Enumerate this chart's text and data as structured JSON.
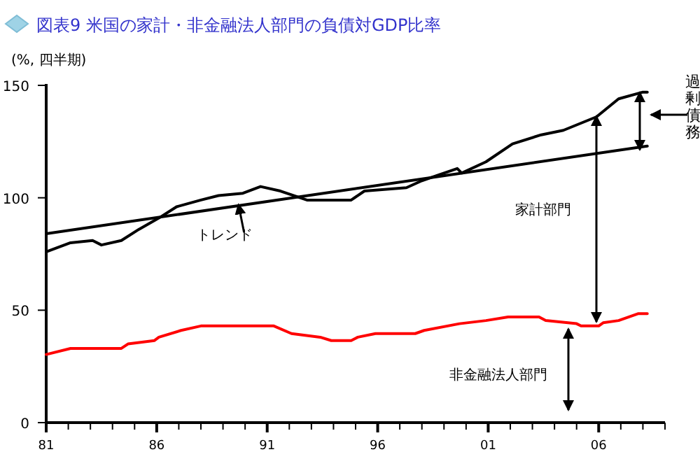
{
  "chart_data": {
    "type": "line",
    "title": "図表9 米国の家計・非金融法人部門の負債対GDP比率",
    "ylabel": "(%, 四半期)",
    "xlim": [
      1981,
      2009
    ],
    "ylim": [
      0,
      150
    ],
    "yticks": [
      0,
      50,
      100,
      150
    ],
    "xticks": [
      {
        "value": 1981,
        "label": "81"
      },
      {
        "value": 1982,
        "label": null
      },
      {
        "value": 1983,
        "label": null
      },
      {
        "value": 1984,
        "label": null
      },
      {
        "value": 1985,
        "label": null
      },
      {
        "value": 1986,
        "label": "86"
      },
      {
        "value": 1987,
        "label": null
      },
      {
        "value": 1988,
        "label": null
      },
      {
        "value": 1989,
        "label": null
      },
      {
        "value": 1990,
        "label": null
      },
      {
        "value": 1991,
        "label": "91"
      },
      {
        "value": 1992,
        "label": null
      },
      {
        "value": 1993,
        "label": null
      },
      {
        "value": 1994,
        "label": null
      },
      {
        "value": 1995,
        "label": null
      },
      {
        "value": 1996,
        "label": "96"
      },
      {
        "value": 1997,
        "label": null
      },
      {
        "value": 1998,
        "label": null
      },
      {
        "value": 1999,
        "label": null
      },
      {
        "value": 2000,
        "label": null
      },
      {
        "value": 2001,
        "label": "01"
      },
      {
        "value": 2002,
        "label": null
      },
      {
        "value": 2003,
        "label": null
      },
      {
        "value": 2004,
        "label": null
      },
      {
        "value": 2005,
        "label": null
      },
      {
        "value": 2006,
        "label": "06"
      },
      {
        "value": 2007,
        "label": null
      },
      {
        "value": 2008,
        "label": null
      },
      {
        "value": 2009,
        "label": null
      }
    ],
    "grid": false,
    "marker": "none",
    "line_style": "solid",
    "series": [
      {
        "color": "#000000",
        "x": [
          1981.0,
          1982.1,
          1983.1,
          1983.5,
          1984.4,
          1985.2,
          1986.1,
          1986.9,
          1988.0,
          1988.8,
          1989.9,
          1990.7,
          1991.6,
          1992.8,
          1994.8,
          1995.4,
          1997.3,
          1998.0,
          1999.6,
          1999.8,
          2000.9,
          2002.1,
          2003.4,
          2004.4,
          2005.9,
          2006.9,
          2008.0,
          2008.2
        ],
        "values": [
          76,
          80,
          81,
          79,
          81,
          86,
          91,
          96,
          99,
          101,
          102,
          105,
          103,
          99,
          99,
          103,
          104.5,
          107.6,
          113,
          111,
          116,
          124,
          128,
          130,
          136,
          144,
          147,
          147
        ]
      },
      {
        "color": "#000000",
        "x": [
          1981.0,
          2008.2
        ],
        "values": [
          84,
          123
        ]
      },
      {
        "color": "#ff0000",
        "x": [
          1981.0,
          1982.1,
          1984.4,
          1984.7,
          1985.9,
          1986.1,
          1987.1,
          1988.0,
          1991.3,
          1992.1,
          1993.4,
          1993.9,
          1994.8,
          1995.1,
          1995.9,
          1997.7,
          1998.1,
          1999.7,
          2000.9,
          2001.9,
          2003.3,
          2003.6,
          2005.0,
          2005.2,
          2006.0,
          2006.2,
          2006.9,
          2007.8,
          2008.2
        ],
        "values": [
          30.3,
          33,
          33,
          35,
          36.5,
          38,
          41,
          43,
          43,
          39.6,
          38,
          36.5,
          36.5,
          38,
          39.6,
          39.6,
          41,
          44,
          45.4,
          47,
          47,
          45.4,
          44,
          43,
          43,
          44.4,
          45.4,
          48.5,
          48.5
        ]
      }
    ],
    "annotations": [
      {
        "text": "トレンド",
        "x": 1989.7,
        "y": 97
      },
      "家計部門",
      "過剰債務",
      "非金融法人部門"
    ]
  }
}
